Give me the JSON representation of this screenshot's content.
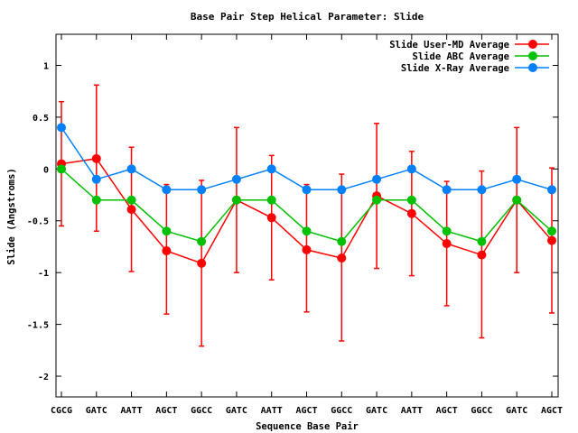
{
  "chart_data": {
    "type": "line",
    "title": "Base Pair Step Helical Parameter: Slide",
    "xlabel": "Sequence Base Pair",
    "ylabel": "Slide (Angstroms)",
    "ylim": [
      -2.2,
      1.3
    ],
    "yticks": [
      {
        "value": 1,
        "label": "1"
      },
      {
        "value": 0.5,
        "label": "0.5"
      },
      {
        "value": 0,
        "label": "0"
      },
      {
        "value": -0.5,
        "label": "-0.5"
      },
      {
        "value": -1,
        "label": "-1"
      },
      {
        "value": -1.5,
        "label": "-1.5"
      },
      {
        "value": -2,
        "label": "-2"
      }
    ],
    "categories": [
      "CGCG",
      "GATC",
      "AATT",
      "AGCT",
      "GGCC",
      "GATC",
      "AATT",
      "AGCT",
      "GGCC",
      "GATC",
      "AATT",
      "AGCT",
      "GGCC",
      "GATC",
      "AGCT"
    ],
    "legend_position": "top-right",
    "series": [
      {
        "name": "Slide User-MD Average",
        "color": "#ff0000",
        "values": [
          0.05,
          0.1,
          -0.39,
          -0.79,
          -0.91,
          -0.3,
          -0.47,
          -0.78,
          -0.86,
          -0.26,
          -0.43,
          -0.72,
          -0.83,
          -0.3,
          -0.69
        ],
        "err_upper": [
          0.65,
          0.81,
          0.21,
          -0.15,
          -0.11,
          0.4,
          0.13,
          -0.15,
          -0.05,
          0.44,
          0.17,
          -0.12,
          -0.02,
          0.4,
          0.01
        ],
        "err_lower": [
          -0.55,
          -0.6,
          -0.99,
          -1.4,
          -1.71,
          -1.0,
          -1.07,
          -1.38,
          -1.66,
          -0.96,
          -1.03,
          -1.32,
          -1.63,
          -1.0,
          -1.39
        ]
      },
      {
        "name": "Slide ABC Average",
        "color": "#00c000",
        "values": [
          0.0,
          -0.3,
          -0.3,
          -0.6,
          -0.7,
          -0.3,
          -0.3,
          -0.6,
          -0.7,
          -0.3,
          -0.3,
          -0.6,
          -0.7,
          -0.3,
          -0.6
        ]
      },
      {
        "name": "Slide X-Ray Average",
        "color": "#0080ff",
        "values": [
          0.4,
          -0.1,
          0.0,
          -0.2,
          -0.2,
          -0.1,
          0.0,
          -0.2,
          -0.2,
          -0.1,
          0.0,
          -0.2,
          -0.2,
          -0.1,
          -0.2
        ]
      }
    ]
  }
}
